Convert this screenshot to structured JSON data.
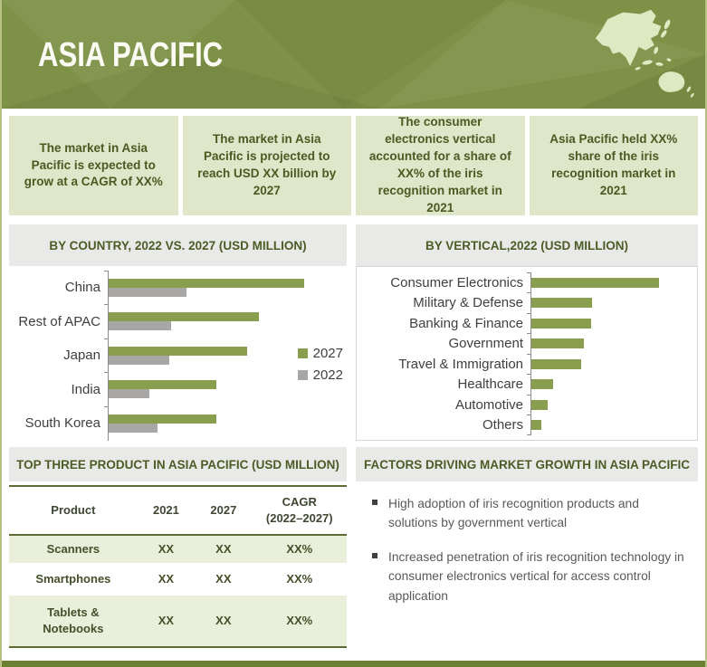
{
  "header": {
    "title": "ASIA PACIFIC"
  },
  "highlight_boxes": [
    {
      "text": "The market in Asia Pacific is expected to grow at a CAGR of XX%"
    },
    {
      "text": "The market in Asia Pacific is projected to reach USD XX billion by 2027"
    },
    {
      "text": "The consumer electronics vertical accounted for a share of XX% of the iris recognition market in 2021"
    },
    {
      "text": "Asia Pacific held XX% share of the iris recognition market in 2021"
    }
  ],
  "sections": {
    "by_country": {
      "title": "BY COUNTRY, 2022 VS. 2027 (USD MILLION)"
    },
    "by_vertical": {
      "title": "BY VERTICAL,2022 (USD MILLION)"
    },
    "top_products": {
      "title": "TOP THREE PRODUCT IN ASIA PACIFIC  (USD MILLION)"
    },
    "factors": {
      "title": "FACTORS DRIVING MARKET GROWTH IN ASIA PACIFIC"
    }
  },
  "chart_data": [
    {
      "type": "bar",
      "orientation": "horizontal",
      "title": "BY COUNTRY, 2022 VS. 2027 (USD MILLION)",
      "categories": [
        "China",
        "Rest of APAC",
        "Japan",
        "India",
        "South Korea"
      ],
      "series": [
        {
          "name": "2027",
          "color": "#8a9e4f",
          "values": [
            100,
            77,
            71,
            55,
            55
          ]
        },
        {
          "name": "2022",
          "color": "#a8a7a5",
          "values": [
            40,
            32,
            31,
            21,
            25
          ]
        }
      ],
      "xlim": [
        0,
        110
      ],
      "value_labels": "hidden (values masked as XX in source)",
      "legend_position": "right",
      "grid": false
    },
    {
      "type": "bar",
      "orientation": "horizontal",
      "title": "BY VERTICAL,2022 (USD MILLION)",
      "categories": [
        "Consumer Electronics",
        "Military & Defense",
        "Banking & Finance",
        "Government",
        "Travel & Immigration",
        "Healthcare",
        "Automotive",
        "Others"
      ],
      "values": [
        100,
        47.5,
        46.8,
        41,
        39,
        17,
        13,
        8
      ],
      "color": "#8a9e4f",
      "xlim": [
        0,
        120
      ],
      "value_labels": "hidden (values masked as XX in source)",
      "legend_position": "none",
      "grid": false
    }
  ],
  "table": {
    "columns": [
      "Product",
      "2021",
      "2027",
      "CAGR\n(2022–2027)"
    ],
    "rows": [
      [
        "Scanners",
        "XX",
        "XX",
        "XX%"
      ],
      [
        "Smartphones",
        "XX",
        "XX",
        "XX%"
      ],
      [
        "Tablets & Notebooks",
        "XX",
        "XX",
        "XX%"
      ]
    ]
  },
  "factors": {
    "bullets": [
      "High adoption of iris recognition products and solutions by government vertical",
      "Increased penetration of iris recognition technology in consumer electronics vertical for access control application"
    ]
  },
  "colors": {
    "header_bg": "#7e9247",
    "header_title": "#fbfbf3",
    "map_fill": "#dde9c1",
    "highlight_box_bg": "#dfe6c9",
    "dark_olive_text": "#4a5a22",
    "strip_bg": "#e9e9e7",
    "bar_green_2027": "#8a9e4f",
    "bar_gray_2022": "#a8a7a5",
    "table_stripe": "#e9efdb",
    "table_border": "#5c6b31",
    "footer_bar": "#6d8132",
    "page_side_border": "#b6c183"
  }
}
